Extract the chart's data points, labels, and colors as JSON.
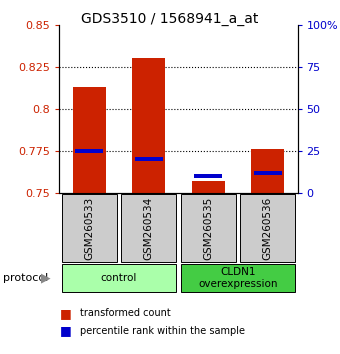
{
  "title": "GDS3510 / 1568941_a_at",
  "samples": [
    "GSM260533",
    "GSM260534",
    "GSM260535",
    "GSM260536"
  ],
  "red_values": [
    0.813,
    0.83,
    0.757,
    0.776
  ],
  "blue_percentiles": [
    25,
    20,
    10,
    12
  ],
  "ylim_left": [
    0.75,
    0.85
  ],
  "ylim_right": [
    0,
    100
  ],
  "yticks_left": [
    0.75,
    0.775,
    0.8,
    0.825,
    0.85
  ],
  "yticks_right": [
    0,
    25,
    50,
    75,
    100
  ],
  "ytick_labels_right": [
    "0",
    "25",
    "50",
    "75",
    "100%"
  ],
  "grid_lines": [
    0.775,
    0.8,
    0.825
  ],
  "red_color": "#cc2200",
  "blue_color": "#0000cc",
  "bar_width": 0.55,
  "groups": [
    {
      "label": "control",
      "samples": [
        0,
        1
      ],
      "color": "#aaffaa"
    },
    {
      "label": "CLDN1\noverexpression",
      "samples": [
        2,
        3
      ],
      "color": "#44cc44"
    }
  ],
  "legend_red": "transformed count",
  "legend_blue": "percentile rank within the sample",
  "sample_box_color": "#cccccc",
  "background_color": "#ffffff",
  "title_fontsize": 10,
  "tick_fontsize": 8,
  "label_fontsize": 7.5
}
